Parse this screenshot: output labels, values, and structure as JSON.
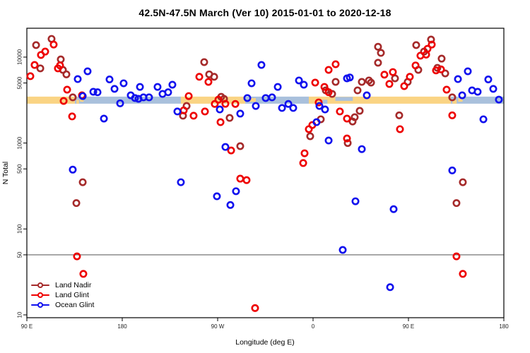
{
  "title": "42.5N-47.5N March (Ver 10)   2015-01-01 to 2020-12-18",
  "axes": {
    "x": {
      "label": "Longitude (deg E)"
    },
    "y": {
      "label": "N Total"
    }
  },
  "legend": {
    "items": [
      {
        "label": "Land Nadir",
        "color_key": "land_nadir"
      },
      {
        "label": "Land Glint",
        "color_key": "land_glint"
      },
      {
        "label": "Ocean Glint",
        "color_key": "ocean_glint"
      }
    ]
  },
  "colors": {
    "land_nadir": "#A52A2A",
    "land_glint": "#EE0000",
    "ocean_glint": "#1111EE",
    "land_band": "#FAD484",
    "ocean_band": "#A9C0DC",
    "refline": "#666666",
    "axis": "#000000"
  },
  "chart_data": {
    "type": "scatter",
    "title": "42.5N-47.5N March (Ver 10)   2015-01-01 to 2020-12-18",
    "xlabel": "Longitude (deg E)",
    "ylabel": "N Total",
    "x_axis": {
      "description": "degrees eastward from 90E (axis wraps the globe 90E -> 180 -> 90W -> 0 -> 90E -> 180)",
      "range": [
        0,
        450
      ],
      "tick_positions": [
        0,
        90,
        180,
        270,
        360,
        450
      ],
      "tick_labels": [
        "90 E",
        "180",
        "90 W",
        "0",
        "90 E",
        "180"
      ]
    },
    "y_axis": {
      "scale": "log10",
      "ticks": [
        10,
        50,
        100,
        500,
        1000,
        5000,
        10000
      ],
      "range_approx": [
        9,
        25000
      ],
      "grid": false
    },
    "reference_line_y": 50,
    "coverage_band": {
      "value_top": 3470,
      "value_bottom": 2870,
      "segments": [
        {
          "from": 0,
          "to": 45.3,
          "type": "land"
        },
        {
          "from": 45.3,
          "to": 145.3,
          "type": "ocean"
        },
        {
          "from": 145.3,
          "to": 206,
          "type": "land"
        },
        {
          "from": 206,
          "to": 266,
          "type": "ocean"
        },
        {
          "from": 266,
          "to": 400,
          "type": "land"
        },
        {
          "from": 400,
          "to": 450,
          "type": "ocean"
        }
      ],
      "patches": [
        {
          "from": 46.8,
          "to": 49.2,
          "type": "land",
          "vpos": "bottom"
        },
        {
          "from": 50.2,
          "to": 53.6,
          "type": "land",
          "vpos": "mid"
        },
        {
          "from": 209.5,
          "to": 216,
          "type": "land",
          "vpos": "mid"
        },
        {
          "from": 279,
          "to": 283.5,
          "type": "ocean",
          "vpos": "bottom"
        },
        {
          "from": 291,
          "to": 307.5,
          "type": "ocean",
          "vpos": "top"
        },
        {
          "from": 401.5,
          "to": 405.5,
          "type": "land",
          "vpos": "bottom"
        },
        {
          "from": 407,
          "to": 411,
          "type": "land",
          "vpos": "mid"
        }
      ]
    },
    "series": [
      {
        "name": "Land Nadir",
        "color_key": "land_nadir",
        "points": [
          [
            8.7,
            13800
          ],
          [
            23.3,
            16300
          ],
          [
            32,
            9400
          ],
          [
            12.7,
            7400
          ],
          [
            34,
            7100
          ],
          [
            37.3,
            6300
          ],
          [
            43.3,
            3400
          ],
          [
            52.7,
            350
          ],
          [
            46.7,
            200
          ],
          [
            167.3,
            8750
          ],
          [
            172,
            6300
          ],
          [
            176.7,
            5900
          ],
          [
            183.3,
            3450
          ],
          [
            186,
            3270
          ],
          [
            150.7,
            2700
          ],
          [
            147.3,
            2080
          ],
          [
            191.3,
            1960
          ],
          [
            201.3,
            920
          ],
          [
            331.3,
            13200
          ],
          [
            334,
            11200
          ],
          [
            331.3,
            8600
          ],
          [
            291.3,
            5150
          ],
          [
            316,
            5150
          ],
          [
            322.7,
            5350
          ],
          [
            324.7,
            5050
          ],
          [
            282,
            4100
          ],
          [
            312,
            4100
          ],
          [
            288,
            3730
          ],
          [
            314,
            2370
          ],
          [
            309.3,
            2000
          ],
          [
            307.3,
            1780
          ],
          [
            277.3,
            1890
          ],
          [
            267.3,
            1200
          ],
          [
            302.7,
            1000
          ],
          [
            381.3,
            16000
          ],
          [
            367.3,
            13800
          ],
          [
            374.7,
            11600
          ],
          [
            391.3,
            9600
          ],
          [
            369.3,
            7100
          ],
          [
            347.3,
            5660
          ],
          [
            359.3,
            5150
          ],
          [
            387.3,
            7500
          ],
          [
            394.7,
            6460
          ],
          [
            401.3,
            3400
          ],
          [
            351.3,
            2100
          ],
          [
            411.3,
            350
          ],
          [
            405.3,
            200
          ]
        ]
      },
      {
        "name": "Land Glint",
        "color_key": "land_glint",
        "points": [
          [
            25.3,
            14000
          ],
          [
            17.3,
            11600
          ],
          [
            13.3,
            10600
          ],
          [
            31.3,
            8000
          ],
          [
            7.3,
            8100
          ],
          [
            29.3,
            7400
          ],
          [
            3.3,
            6000
          ],
          [
            38,
            4180
          ],
          [
            34.7,
            3090
          ],
          [
            52,
            3590
          ],
          [
            42.7,
            2040
          ],
          [
            47.3,
            48
          ],
          [
            53.3,
            30
          ],
          [
            152.7,
            3520
          ],
          [
            162.7,
            5900
          ],
          [
            171.3,
            5150
          ],
          [
            180.7,
            3200
          ],
          [
            187.3,
            2860
          ],
          [
            177.3,
            2850
          ],
          [
            196.7,
            2850
          ],
          [
            148,
            2400
          ],
          [
            157.3,
            2080
          ],
          [
            168,
            2330
          ],
          [
            182.7,
            1750
          ],
          [
            192.7,
            820
          ],
          [
            201.3,
            385
          ],
          [
            207.3,
            370
          ],
          [
            215.3,
            12
          ],
          [
            272,
            5050
          ],
          [
            280.7,
            4500
          ],
          [
            284.7,
            3900
          ],
          [
            291.3,
            8260
          ],
          [
            284.7,
            7100
          ],
          [
            337.3,
            6250
          ],
          [
            275.3,
            2970
          ],
          [
            295.3,
            2330
          ],
          [
            302,
            1925
          ],
          [
            269.3,
            1620
          ],
          [
            266,
            1450
          ],
          [
            302,
            1130
          ],
          [
            262,
            760
          ],
          [
            260.7,
            585
          ],
          [
            345.3,
            6700
          ],
          [
            342,
            4870
          ],
          [
            356,
            4600
          ],
          [
            361.3,
            5900
          ],
          [
            366.7,
            8000
          ],
          [
            371.3,
            10400
          ],
          [
            376.7,
            10700
          ],
          [
            382,
            14000
          ],
          [
            378,
            12500
          ],
          [
            386,
            7000
          ],
          [
            390.7,
            7200
          ],
          [
            396,
            4180
          ],
          [
            401.3,
            2100
          ],
          [
            352,
            1450
          ],
          [
            405.3,
            48
          ],
          [
            411.3,
            30
          ]
        ]
      },
      {
        "name": "Ocean Glint",
        "color_key": "ocean_glint",
        "points": [
          [
            57.3,
            6840
          ],
          [
            48,
            5550
          ],
          [
            78,
            5500
          ],
          [
            91.3,
            4960
          ],
          [
            106.7,
            4500
          ],
          [
            52.7,
            3520
          ],
          [
            62.7,
            3950
          ],
          [
            66.7,
            3900
          ],
          [
            82.7,
            4270
          ],
          [
            98,
            3590
          ],
          [
            102,
            3340
          ],
          [
            105.3,
            3270
          ],
          [
            110,
            3400
          ],
          [
            88,
            2900
          ],
          [
            72.7,
            1925
          ],
          [
            43.3,
            490
          ],
          [
            137.3,
            4775
          ],
          [
            123.3,
            4500
          ],
          [
            133.3,
            3900
          ],
          [
            128,
            3730
          ],
          [
            115.3,
            3400
          ],
          [
            208,
            3340
          ],
          [
            142,
            2330
          ],
          [
            182,
            2460
          ],
          [
            201.3,
            2200
          ],
          [
            216,
            2700
          ],
          [
            187.3,
            900
          ],
          [
            145.3,
            350
          ],
          [
            197.3,
            275
          ],
          [
            179.3,
            240
          ],
          [
            192,
            190
          ],
          [
            212,
            4960
          ],
          [
            221.3,
            8100
          ],
          [
            236.7,
            4500
          ],
          [
            256.7,
            5350
          ],
          [
            261.3,
            4775
          ],
          [
            302,
            5660
          ],
          [
            304.7,
            5800
          ],
          [
            320.7,
            3590
          ],
          [
            231.3,
            3400
          ],
          [
            225.3,
            3340
          ],
          [
            240.7,
            2560
          ],
          [
            246.7,
            2850
          ],
          [
            251.3,
            2560
          ],
          [
            276,
            2700
          ],
          [
            281.3,
            2460
          ],
          [
            273.3,
            1750
          ],
          [
            284.7,
            1070
          ],
          [
            316,
            850
          ],
          [
            310,
            210
          ],
          [
            298,
            57
          ],
          [
            342.7,
            21
          ],
          [
            416,
            6840
          ],
          [
            406.7,
            5550
          ],
          [
            435.3,
            5500
          ],
          [
            440,
            4270
          ],
          [
            410.7,
            3590
          ],
          [
            420,
            4100
          ],
          [
            425.3,
            3950
          ],
          [
            445.3,
            3200
          ],
          [
            430.7,
            1890
          ],
          [
            401.3,
            480
          ],
          [
            346,
            170
          ]
        ]
      }
    ]
  }
}
